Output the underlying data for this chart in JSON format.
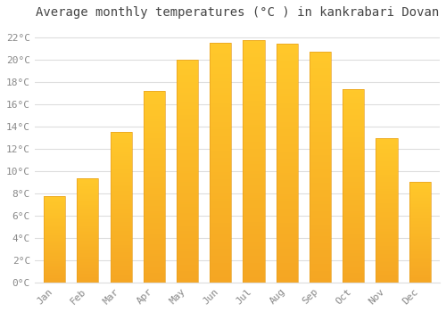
{
  "title": "Average monthly temperatures (°C ) in kankrabari Dovan",
  "months": [
    "Jan",
    "Feb",
    "Mar",
    "Apr",
    "May",
    "Jun",
    "Jul",
    "Aug",
    "Sep",
    "Oct",
    "Nov",
    "Dec"
  ],
  "temperatures": [
    7.7,
    9.3,
    13.5,
    17.2,
    20.0,
    21.5,
    21.7,
    21.4,
    20.7,
    17.3,
    12.9,
    9.0
  ],
  "bar_color_top": "#FFC82A",
  "bar_color_bottom": "#F5A623",
  "bar_edge_color": "#E8A020",
  "background_color": "#FFFFFF",
  "plot_bg_color": "#FFFFFF",
  "grid_color": "#DDDDDD",
  "text_color": "#888888",
  "title_color": "#444444",
  "ylim": [
    0,
    23
  ],
  "yticks": [
    0,
    2,
    4,
    6,
    8,
    10,
    12,
    14,
    16,
    18,
    20,
    22
  ],
  "title_fontsize": 10,
  "tick_fontsize": 8,
  "bar_width": 0.65
}
